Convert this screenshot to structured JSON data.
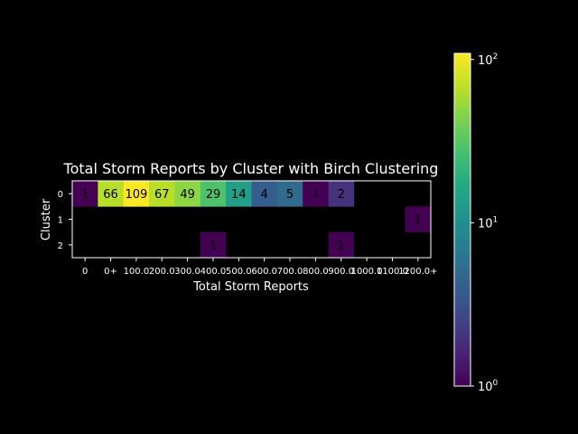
{
  "chart_data": {
    "type": "heatmap",
    "title": "Total Storm Reports by Cluster with Birch Clustering",
    "xlabel": "Total Storm Reports",
    "ylabel": "Cluster",
    "x_categories": [
      "0",
      "0+",
      "100.0+",
      "200.0+",
      "300.0+",
      "400.0+",
      "500.0+",
      "600.0+",
      "700.0+",
      "800.0+",
      "900.0+",
      "1000.0+",
      "1100.0+",
      "1200.0+"
    ],
    "x_tick_labels": [
      "0",
      "0+",
      "100.0",
      "200.0",
      "300.0",
      "400.0",
      "500.0",
      "600.0",
      "700.0",
      "800.0",
      "900.0",
      "1000.0",
      "1100.0",
      "1200.0+"
    ],
    "y_categories": [
      "0",
      "1",
      "2"
    ],
    "values": [
      [
        1,
        66,
        109,
        67,
        49,
        29,
        14,
        4,
        5,
        1,
        2,
        null,
        null,
        null
      ],
      [
        null,
        null,
        null,
        null,
        null,
        null,
        null,
        null,
        null,
        null,
        null,
        null,
        null,
        1
      ],
      [
        null,
        null,
        null,
        null,
        null,
        1,
        null,
        null,
        null,
        null,
        1,
        null,
        null,
        null
      ]
    ],
    "colorbar": {
      "scale": "log",
      "range": [
        1,
        109
      ],
      "ticks": [
        {
          "base": "10",
          "exp": "0",
          "value": 1
        },
        {
          "base": "10",
          "exp": "1",
          "value": 10
        },
        {
          "base": "10",
          "exp": "2",
          "value": 100
        }
      ],
      "colormap": "viridis"
    },
    "background": "#000000",
    "text_color": "#ffffff",
    "grid": false
  }
}
